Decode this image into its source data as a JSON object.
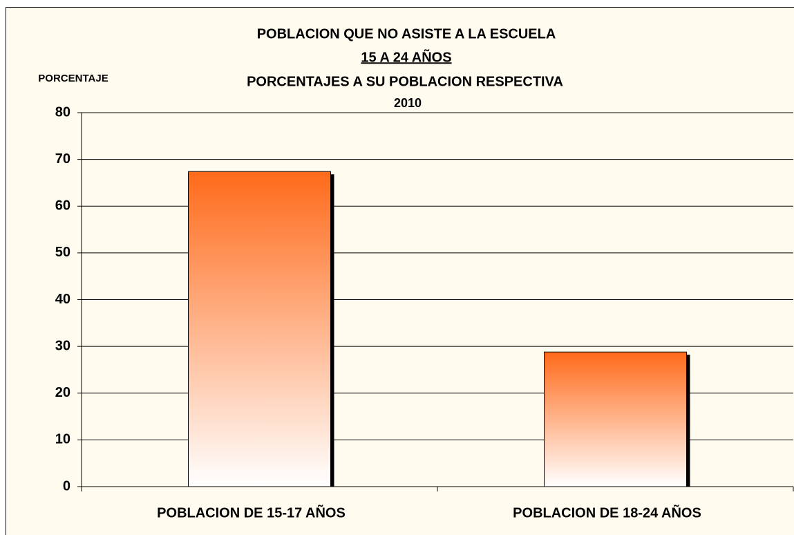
{
  "chart_data": {
    "type": "bar",
    "title": "POBLACION QUE NO ASISTE A LA ESCUELA",
    "subtitle": [
      "15 A 24 AÑOS",
      "PORCENTAJES A SU POBLACION RESPECTIVA",
      "2010"
    ],
    "y_label": "PORCENTAJE",
    "categories": [
      "POBLACION DE 15-17 AÑOS",
      "POBLACION DE 18-24 AÑOS"
    ],
    "values": [
      67.4,
      28.8
    ],
    "color": "#ff6a1a",
    "ylim": [
      0,
      80
    ],
    "yticks": [
      0,
      10,
      20,
      30,
      40,
      50,
      60,
      70,
      80
    ],
    "grid": true
  }
}
